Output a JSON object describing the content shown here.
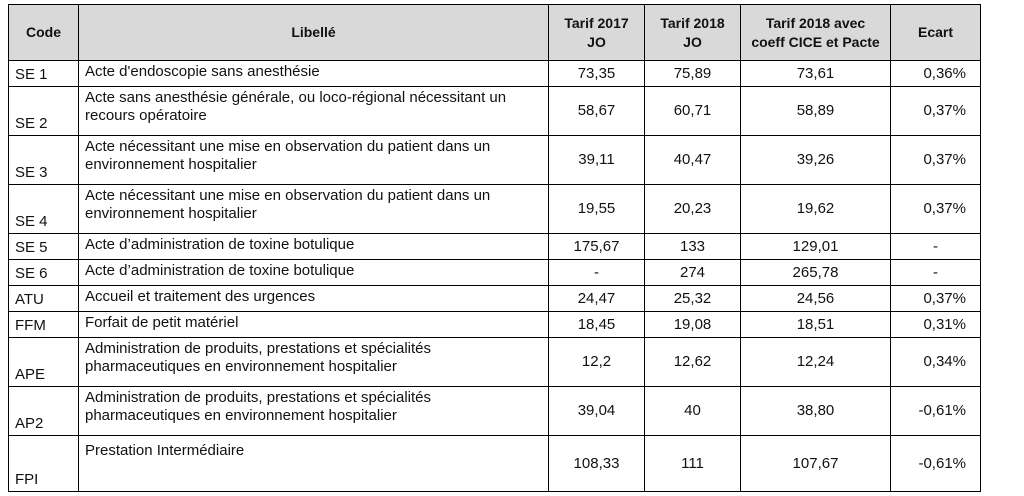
{
  "table": {
    "headers": {
      "code": "Code",
      "libelle": "Libellé",
      "tarif2017_line1": "Tarif 2017",
      "tarif2017_line2": "JO",
      "tarif2018_line1": "Tarif 2018",
      "tarif2018_line2": "JO",
      "tarif2018cice_line1": "Tarif 2018 avec",
      "tarif2018cice_line2": "coeff CICE et Pacte",
      "ecart": "Ecart"
    },
    "rows": [
      {
        "code": "SE 1",
        "libelle": "Acte d'endoscopie sans anesthésie",
        "t2017": "73,35",
        "t2018": "75,89",
        "t2018c": "73,61",
        "ecart": "0,36%"
      },
      {
        "code": "SE 2",
        "libelle": "Acte sans anesthésie générale, ou loco-régional nécessitant un recours opératoire",
        "t2017": "58,67",
        "t2018": "60,71",
        "t2018c": "58,89",
        "ecart": "0,37%"
      },
      {
        "code": "SE 3",
        "libelle": "Acte nécessitant une mise en observation du patient dans un environnement hospitalier",
        "t2017": "39,11",
        "t2018": "40,47",
        "t2018c": "39,26",
        "ecart": "0,37%"
      },
      {
        "code": "SE 4",
        "libelle": "Acte nécessitant une mise en observation du patient dans un environnement hospitalier",
        "t2017": "19,55",
        "t2018": "20,23",
        "t2018c": "19,62",
        "ecart": "0,37%"
      },
      {
        "code": "SE 5",
        "libelle": "Acte d’administration de toxine botulique",
        "t2017": "175,67",
        "t2018": "133",
        "t2018c": "129,01",
        "ecart": "-"
      },
      {
        "code": "SE 6",
        "libelle": "Acte d’administration de toxine botulique",
        "t2017": "-",
        "t2018": "274",
        "t2018c": "265,78",
        "ecart": "-"
      },
      {
        "code": "ATU",
        "libelle": "Accueil et traitement des urgences",
        "t2017": "24,47",
        "t2018": "25,32",
        "t2018c": "24,56",
        "ecart": "0,37%"
      },
      {
        "code": "FFM",
        "libelle": "Forfait de petit matériel",
        "t2017": "18,45",
        "t2018": "19,08",
        "t2018c": "18,51",
        "ecart": "0,31%"
      },
      {
        "code": "APE",
        "libelle": "Administration de produits, prestations et spécialités pharmaceutiques en environnement hospitalier",
        "t2017": "12,2",
        "t2018": "12,62",
        "t2018c": "12,24",
        "ecart": "0,34%"
      },
      {
        "code": "AP2",
        "libelle": "Administration de produits, prestations et spécialités pharmaceutiques en environnement hospitalier",
        "t2017": "39,04",
        "t2018": "40",
        "t2018c": "38,80",
        "ecart": "-0,61%"
      },
      {
        "code": "FPI",
        "libelle": "Prestation Intermédiaire",
        "t2017": "108,33",
        "t2018": "111",
        "t2018c": "107,67",
        "ecart": "-0,61%"
      }
    ]
  }
}
